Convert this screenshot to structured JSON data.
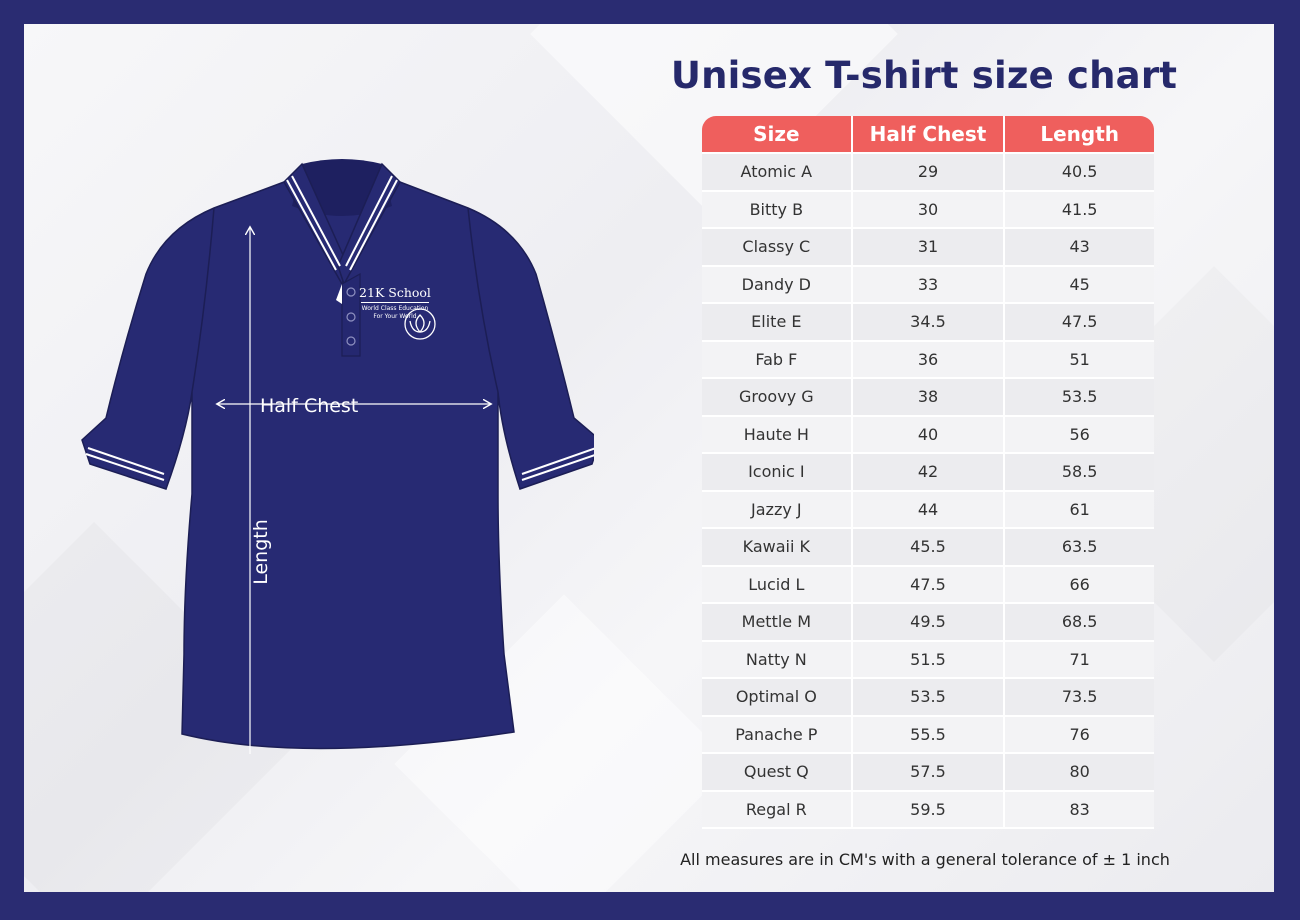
{
  "title": "Unisex T-shirt size chart",
  "shirt": {
    "half_chest_label": "Half Chest",
    "length_label": "Length",
    "logo_name": "21K School",
    "logo_tagline_1": "World Class Education",
    "logo_tagline_2": "For Your World"
  },
  "table": {
    "headers": [
      "Size",
      "Half Chest",
      "Length"
    ],
    "rows": [
      [
        "Atomic A",
        "29",
        "40.5"
      ],
      [
        "Bitty B",
        "30",
        "41.5"
      ],
      [
        "Classy C",
        "31",
        "43"
      ],
      [
        "Dandy D",
        "33",
        "45"
      ],
      [
        "Elite E",
        "34.5",
        "47.5"
      ],
      [
        "Fab F",
        "36",
        "51"
      ],
      [
        "Groovy G",
        "38",
        "53.5"
      ],
      [
        "Haute H",
        "40",
        "56"
      ],
      [
        "Iconic I",
        "42",
        "58.5"
      ],
      [
        "Jazzy J",
        "44",
        "61"
      ],
      [
        "Kawaii K",
        "45.5",
        "63.5"
      ],
      [
        "Lucid L",
        "47.5",
        "66"
      ],
      [
        "Mettle M",
        "49.5",
        "68.5"
      ],
      [
        "Natty N",
        "51.5",
        "71"
      ],
      [
        "Optimal O",
        "53.5",
        "73.5"
      ],
      [
        "Panache P",
        "55.5",
        "76"
      ],
      [
        "Quest Q",
        "57.5",
        "80"
      ],
      [
        "Regal R",
        "59.5",
        "83"
      ]
    ]
  },
  "footnote": "All measures are in CM's with a general tolerance of ± 1 inch",
  "colors": {
    "frame": "#2a2c72",
    "shirt": "#272a73",
    "header": "#ef5f5d",
    "title": "#26296b"
  }
}
